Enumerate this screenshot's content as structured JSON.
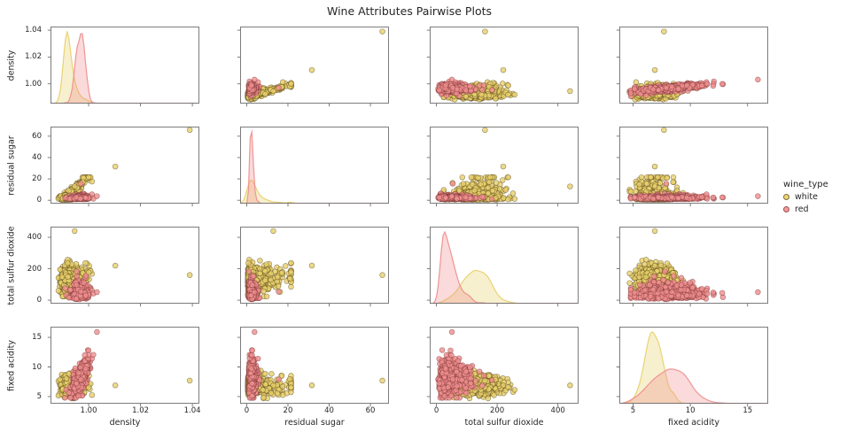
{
  "title": "Wine Attributes Pairwise Plots",
  "legend": {
    "title": "wine_type",
    "entries": [
      {
        "label": "white"
      },
      {
        "label": "red"
      }
    ]
  },
  "chart_data": {
    "type": "scatter",
    "variant": "pairplot-matrix-4x4-with-kde-diagonal",
    "hue": "wine_type",
    "variables": [
      {
        "name": "density",
        "label": "density",
        "range": [
          0.9853,
          1.0427
        ],
        "ticks": [
          {
            "v": 1.0,
            "label": "1.00"
          },
          {
            "v": 1.02,
            "label": "1.02"
          },
          {
            "v": 1.04,
            "label": "1.04"
          }
        ]
      },
      {
        "name": "residual_sugar",
        "label": "residual sugar",
        "range": [
          -3.2,
          69
        ],
        "ticks": [
          {
            "v": 0,
            "label": "0"
          },
          {
            "v": 20,
            "label": "20"
          },
          {
            "v": 40,
            "label": "40"
          },
          {
            "v": 60,
            "label": "60"
          }
        ]
      },
      {
        "name": "total_so2",
        "label": "total sulfur dioxide",
        "range": [
          -22,
          468
        ],
        "ticks": [
          {
            "v": 0,
            "label": "0"
          },
          {
            "v": 200,
            "label": "200"
          },
          {
            "v": 400,
            "label": "400"
          }
        ]
      },
      {
        "name": "fixed_acidity",
        "label": "fixed acidity",
        "range": [
          3.8,
          16.8
        ],
        "ticks": [
          {
            "v": 5,
            "label": "5"
          },
          {
            "v": 10,
            "label": "10"
          },
          {
            "v": 15,
            "label": "15"
          }
        ]
      }
    ],
    "series": [
      {
        "name": "white",
        "color": "#e8d16b",
        "edge": "#55431a",
        "seed": 7,
        "n": 640,
        "gen": {
          "order": [
            "residual_sugar",
            "density",
            "total_so2",
            "fixed_acidity"
          ],
          "vars": {
            "residual_sugar": {
              "dist": "lognormal",
              "mu": 1.15,
              "sigma": 0.95,
              "clip": [
                0.6,
                21.5
              ]
            },
            "density": {
              "dist": "normal",
              "mu": 0.99075,
              "sigma": 0.00105,
              "clip": [
                0.9861,
                1.0032
              ],
              "dep": {
                "on": "residual_sugar",
                "coef": 0.0004
              }
            },
            "total_so2": {
              "dist": "normal",
              "mu": 120,
              "sigma": 40,
              "clip": [
                24,
                295
              ],
              "dep": {
                "on": "residual_sugar",
                "coef": 2.0
              }
            },
            "fixed_acidity": {
              "dist": "normal",
              "mu": 6.85,
              "sigma": 0.78,
              "clip": [
                4.7,
                10.6
              ]
            }
          }
        },
        "outliers": [
          [
            1.0103,
            31.6,
            220,
            6.9
          ],
          [
            1.039,
            65.8,
            160,
            7.7
          ],
          [
            0.9946,
            12.9,
            440,
            6.9
          ]
        ]
      },
      {
        "name": "red",
        "color": "#ef8f8f",
        "edge": "#7e3535",
        "seed": 13,
        "n": 500,
        "gen": {
          "order": [
            "fixed_acidity",
            "density",
            "residual_sugar",
            "total_so2"
          ],
          "vars": {
            "fixed_acidity": {
              "dist": "normal",
              "mu": 8.2,
              "sigma": 1.6,
              "clip": [
                4.8,
                14.0
              ]
            },
            "density": {
              "dist": "normal",
              "mu": 0.98995,
              "sigma": 0.00115,
              "clip": [
                0.9903,
                1.0041
              ],
              "dep": {
                "on": "fixed_acidity",
                "coef": 0.00083
              }
            },
            "residual_sugar": {
              "dist": "lognormal",
              "mu": 0.83,
              "sigma": 0.36,
              "clip": [
                1.1,
                9.0
              ]
            },
            "total_so2": {
              "dist": "lognormal",
              "mu": 3.62,
              "sigma": 0.6,
              "clip": [
                6,
                282
              ]
            }
          }
        },
        "outliers": [
          [
            1.0032,
            3.8,
            51,
            15.9
          ],
          [
            0.997,
            15.5,
            54,
            7.9
          ]
        ]
      }
    ],
    "style": {
      "marker_radius": 2.9,
      "point_alpha": 0.8,
      "kde_fill_alpha": 0.33,
      "kde_line_alpha": 0.95,
      "spine_color": "#6e6e6e",
      "text_color": "#262626"
    }
  }
}
